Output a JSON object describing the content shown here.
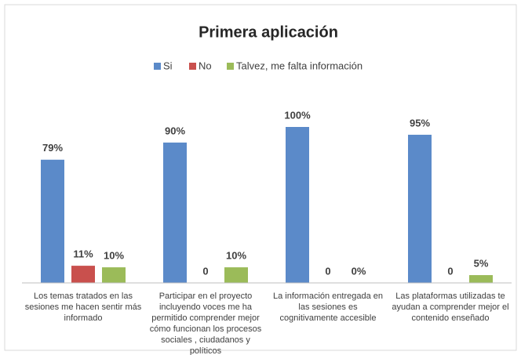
{
  "chart_data": {
    "type": "bar",
    "title": "Primera aplicación",
    "categories": [
      "Los temas tratados en las sesiones me hacen sentir más informado",
      "Participar en el proyecto incluyendo voces me ha permitido comprender mejor cómo funcionan los procesos sociales , ciudadanos y políticos",
      "La información entregada en las sesiones es cognitivamente accesible",
      "Las plataformas  utilizadas te ayudan a comprender mejor el contenido enseñado"
    ],
    "series": [
      {
        "name": "Si",
        "color": "#5b8ac9",
        "values": [
          79,
          90,
          100,
          95
        ],
        "value_labels": [
          "79%",
          "90%",
          "100%",
          "95%"
        ]
      },
      {
        "name": "No",
        "color": "#c9504d",
        "values": [
          11,
          0,
          0,
          0
        ],
        "value_labels": [
          "11%",
          "0",
          "0",
          "0"
        ]
      },
      {
        "name": "Talvez, me falta información",
        "color": "#9bbb59",
        "values": [
          10,
          10,
          0,
          5
        ],
        "value_labels": [
          "10%",
          "10%",
          "0%",
          "5%"
        ]
      }
    ],
    "legend": "top"
  }
}
